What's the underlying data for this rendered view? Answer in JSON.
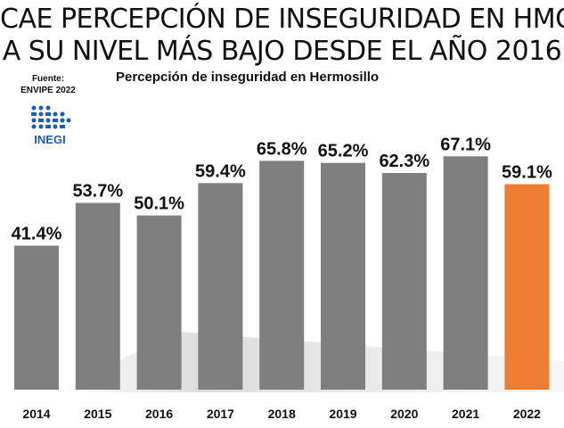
{
  "headline": {
    "line1": "CAE PERCEPCIÓN DE INSEGURIDAD EN  HMO",
    "line2": "A SU NIVEL MÁS BAJO DESDE EL AÑO 2016"
  },
  "source": {
    "label": "Fuente:",
    "name": "ENVIPE 2022"
  },
  "logo": {
    "text": "INEGI",
    "color": "#1f5ea8"
  },
  "chart_data": {
    "type": "bar",
    "title": "Percepción de inseguridad en Hermosillo",
    "xlabel": "",
    "ylabel": "",
    "categories": [
      "2014",
      "2015",
      "2016",
      "2017",
      "2018",
      "2019",
      "2020",
      "2021",
      "2022"
    ],
    "values": [
      41.4,
      53.7,
      50.1,
      59.4,
      65.8,
      65.2,
      62.3,
      67.1,
      59.1
    ],
    "value_labels": [
      "41.4%",
      "53.7%",
      "50.1%",
      "59.4%",
      "65.8%",
      "65.2%",
      "62.3%",
      "67.1%",
      "59.1%"
    ],
    "ylim": [
      0,
      100
    ],
    "grid": false,
    "legend": "none",
    "colors": {
      "default": "#7f7f7f",
      "highlight": "#ed7d31",
      "highlight_category": "2022"
    }
  }
}
